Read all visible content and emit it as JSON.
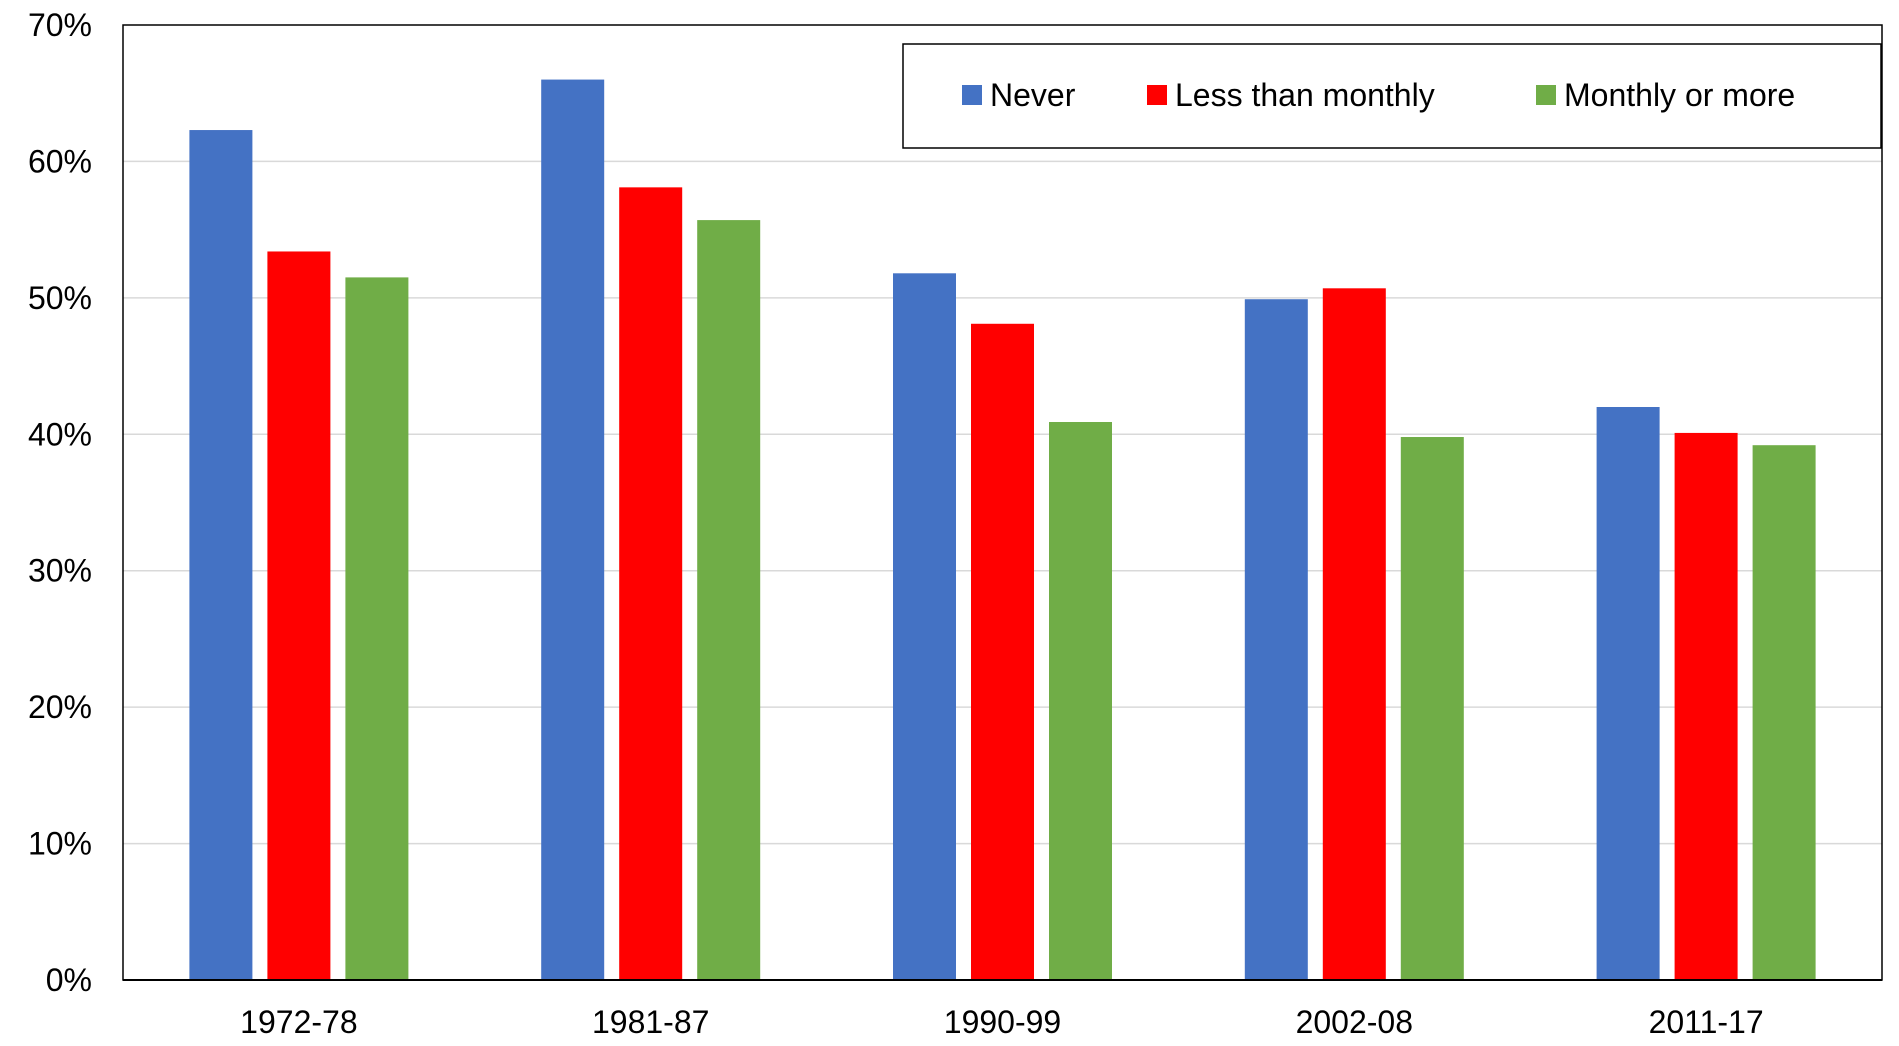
{
  "chart_data": {
    "type": "bar",
    "categories": [
      "1972-78",
      "1981-87",
      "1990-99",
      "2002-08",
      "2011-17"
    ],
    "series": [
      {
        "name": "Never",
        "color": "#4472C4",
        "values": [
          62.3,
          66.0,
          51.8,
          49.9,
          42.0
        ]
      },
      {
        "name": "Less than monthly",
        "color": "#FF0000",
        "values": [
          53.4,
          58.1,
          48.1,
          50.7,
          40.1
        ]
      },
      {
        "name": "Monthly or more",
        "color": "#70AD47",
        "values": [
          51.5,
          55.7,
          40.9,
          39.8,
          39.2
        ]
      }
    ],
    "ylim": [
      0,
      70
    ],
    "yticks": [
      "0%",
      "10%",
      "20%",
      "30%",
      "40%",
      "50%",
      "60%",
      "70%"
    ],
    "grid": true,
    "legend_position": "top-right"
  }
}
